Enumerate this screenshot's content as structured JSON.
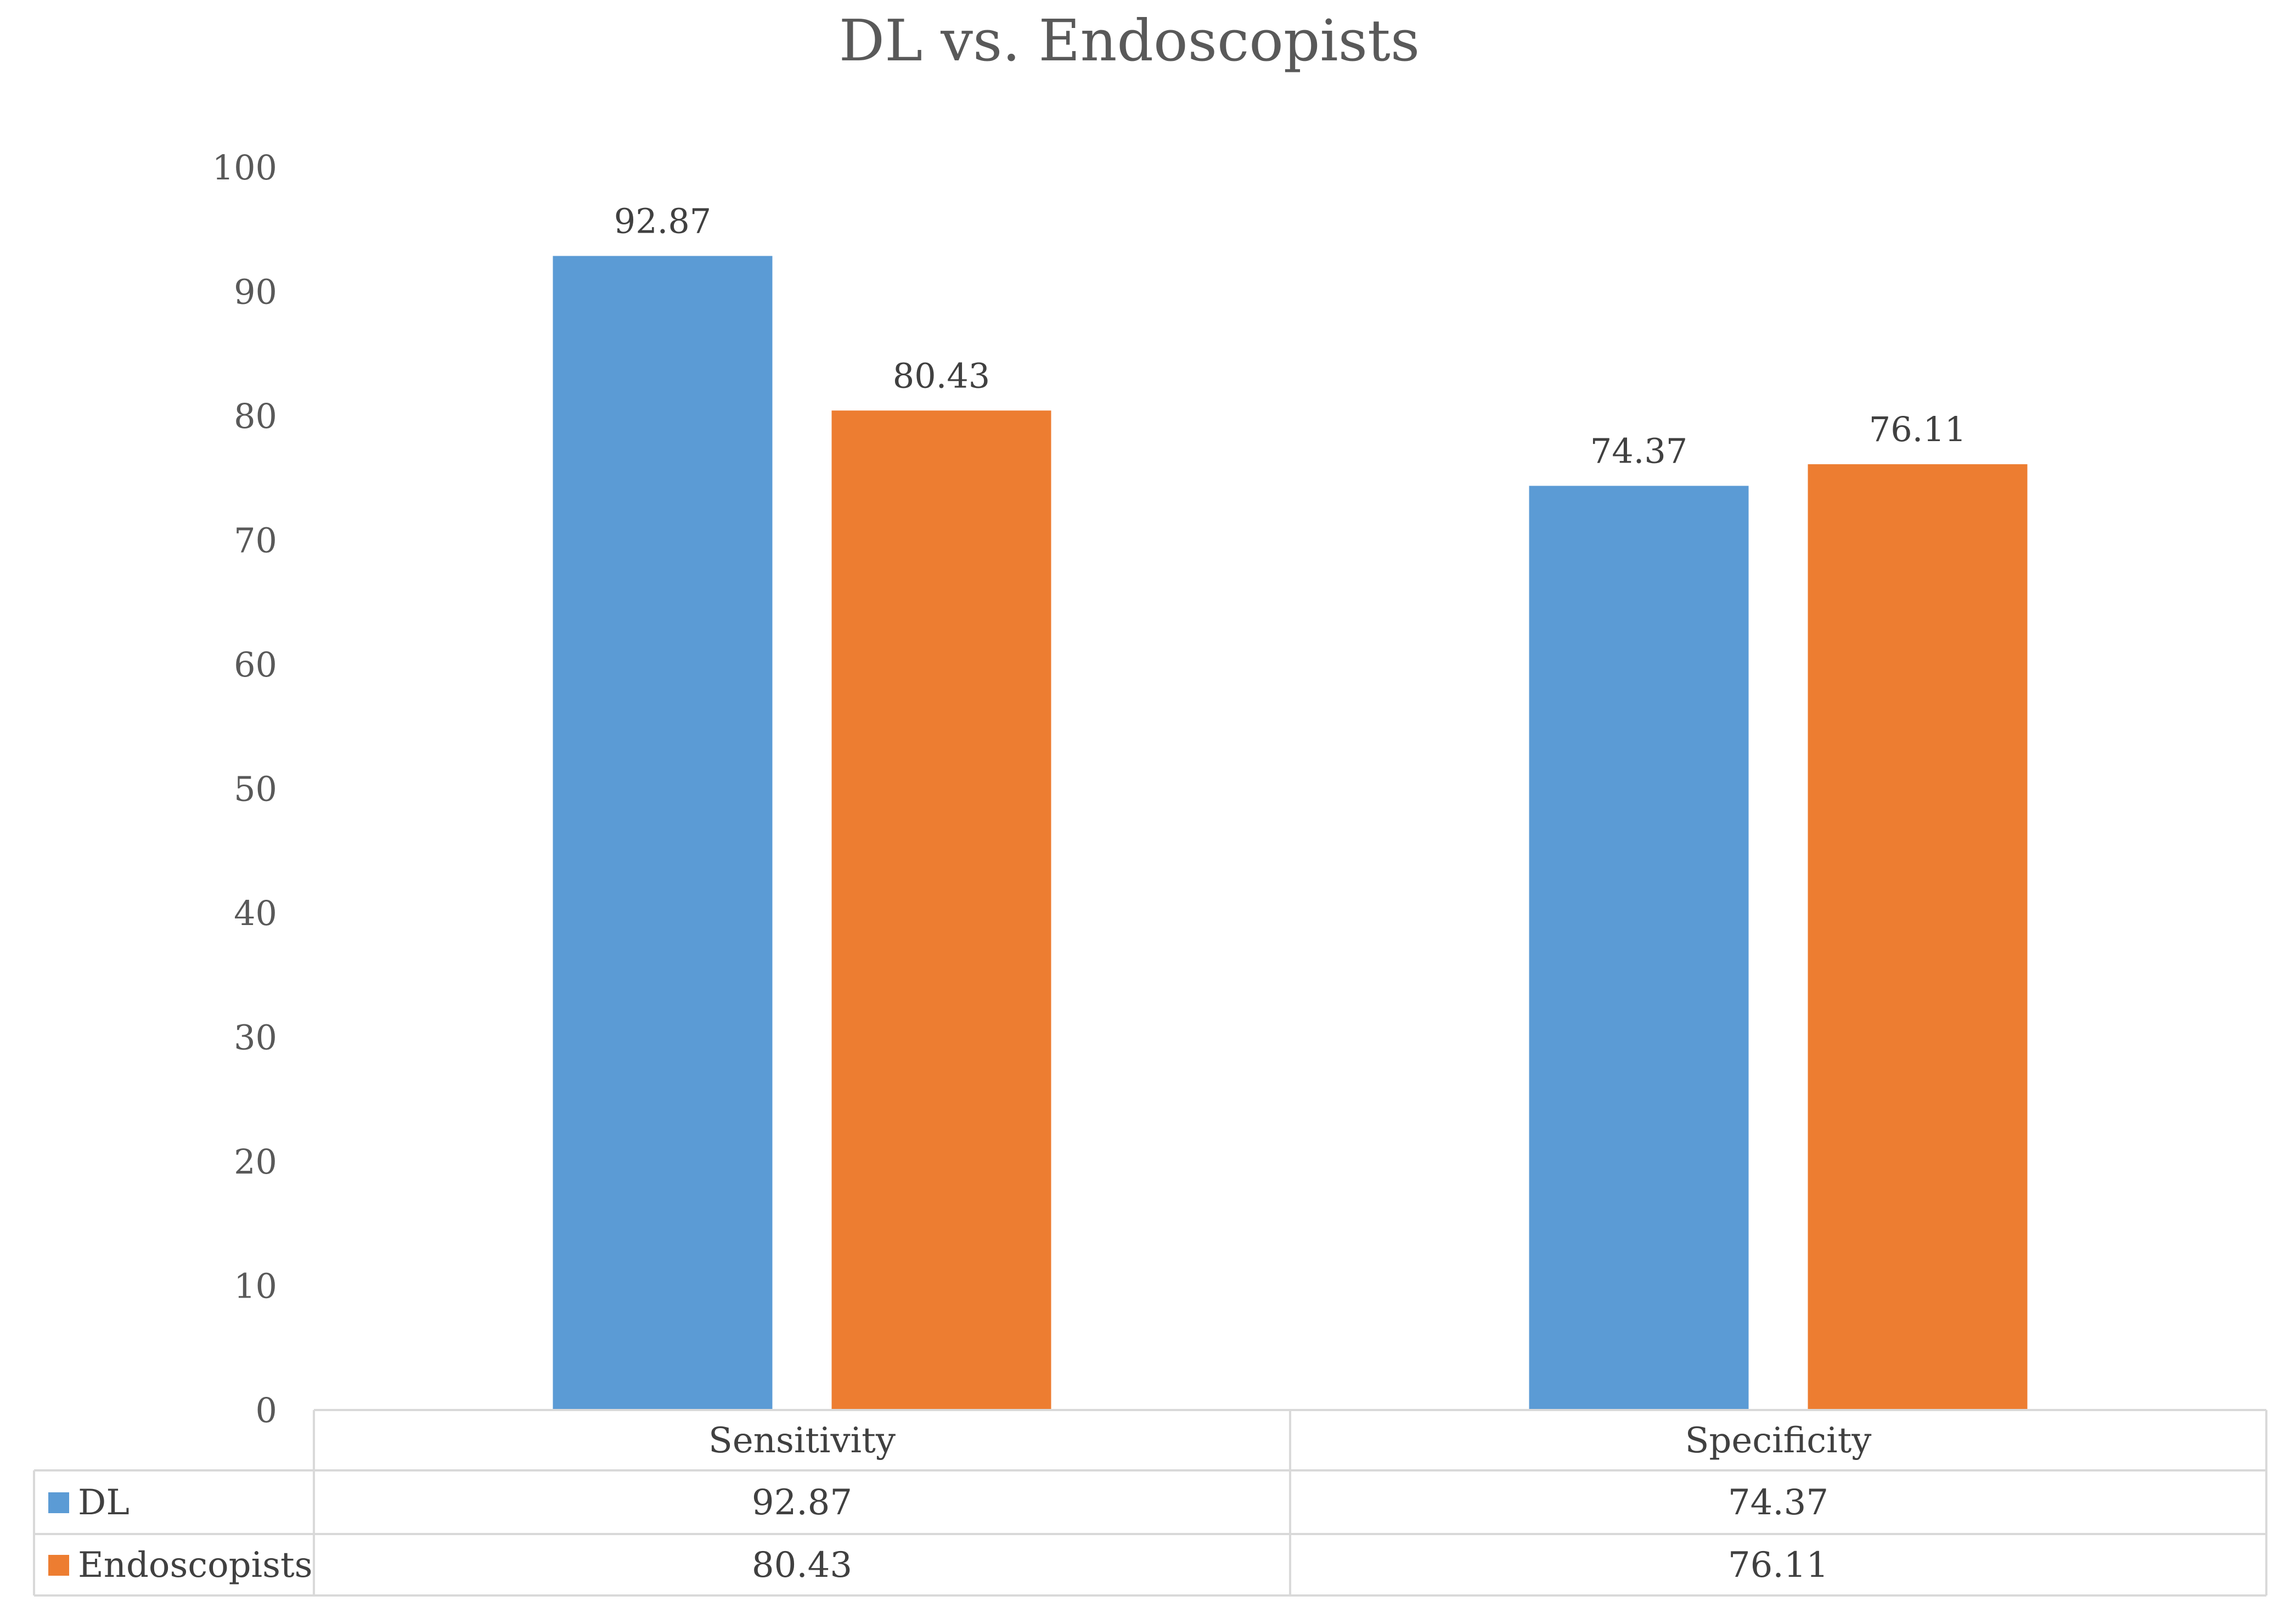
{
  "chart_data": {
    "type": "bar",
    "title": "DL vs. Endoscopists",
    "xlabel": "",
    "ylabel": "",
    "ylim": [
      0,
      100
    ],
    "ytick_step": 10,
    "grid": false,
    "legend": "data-table-bottom",
    "categories": [
      "Sensitivity",
      "Specificity"
    ],
    "series": [
      {
        "name": "DL",
        "color": "#5b9bd5",
        "values": [
          92.87,
          74.37
        ],
        "labels": [
          "92.87",
          "74.37"
        ]
      },
      {
        "name": "Endoscopists",
        "color": "#ed7d31",
        "values": [
          80.43,
          76.11
        ],
        "labels": [
          "80.43",
          "76.11"
        ]
      }
    ]
  }
}
